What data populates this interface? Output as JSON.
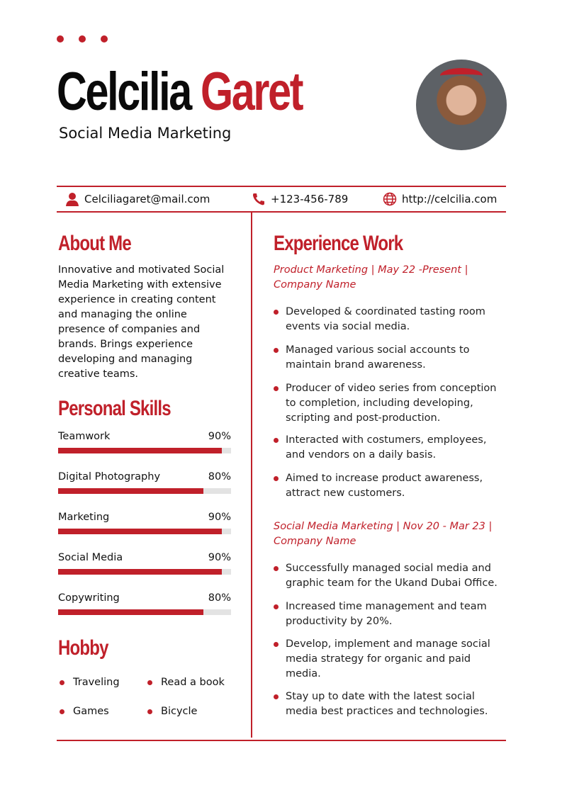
{
  "colors": {
    "accent": "#c0202a"
  },
  "header": {
    "first_name": "Celcilia",
    "last_name": "Garet",
    "title": "Social Media Marketing"
  },
  "contact": {
    "email": "Celciliagaret@mail.com",
    "phone": "+123-456-789",
    "website": "http://celcilia.com",
    "icons": [
      "user-icon",
      "phone-icon",
      "globe-icon"
    ]
  },
  "about": {
    "heading": "About Me",
    "lines": [
      "Innovative and motivated Social",
      "Media Marketing with extensive",
      "experience in creating content",
      "and managing the online",
      "presence of companies and",
      "brands. Brings experience",
      "developing and managing",
      "creative teams."
    ]
  },
  "skills": {
    "heading": "Personal Skills",
    "items": [
      {
        "label": "Teamwork",
        "percent": "90%",
        "value": 90
      },
      {
        "label": "Digital Photography",
        "percent": "80%",
        "value": 80
      },
      {
        "label": "Marketing",
        "percent": "90%",
        "value": 90
      },
      {
        "label": "Social Media",
        "percent": "90%",
        "value": 90
      },
      {
        "label": "Copywriting",
        "percent": "80%",
        "value": 80
      }
    ]
  },
  "hobby": {
    "heading": "Hobby",
    "items": [
      "Traveling",
      "Read a book",
      "Games",
      "Bicycle"
    ]
  },
  "experience": {
    "heading": "Experience Work",
    "jobs": [
      {
        "title_lines": [
          "Product Marketing | May 22 -Present |",
          "Company Name"
        ],
        "bullets": [
          [
            "Developed & coordinated tasting room",
            "events via social media."
          ],
          [
            "Managed various social accounts to",
            "maintain brand awareness."
          ],
          [
            "Producer of video series from conception",
            "to completion, including developing,",
            "scripting and post-production."
          ],
          [
            "Interacted with costumers, employees,",
            "and vendors on a daily basis."
          ],
          [
            "Aimed to increase product awareness,",
            "attract new customers."
          ]
        ]
      },
      {
        "title_lines": [
          "Social Media Marketing | Nov 20 - Mar 23 |",
          "Company Name"
        ],
        "bullets": [
          [
            "Successfully managed social media and",
            "graphic team for the Ukand Dubai Office."
          ],
          [
            "Increased time management and team",
            "productivity by 20%."
          ],
          [
            "Develop, implement and manage social",
            "media strategy for organic and paid",
            "media."
          ],
          [
            "Stay up to date with the latest social",
            "media best practices and technologies."
          ]
        ]
      }
    ]
  }
}
